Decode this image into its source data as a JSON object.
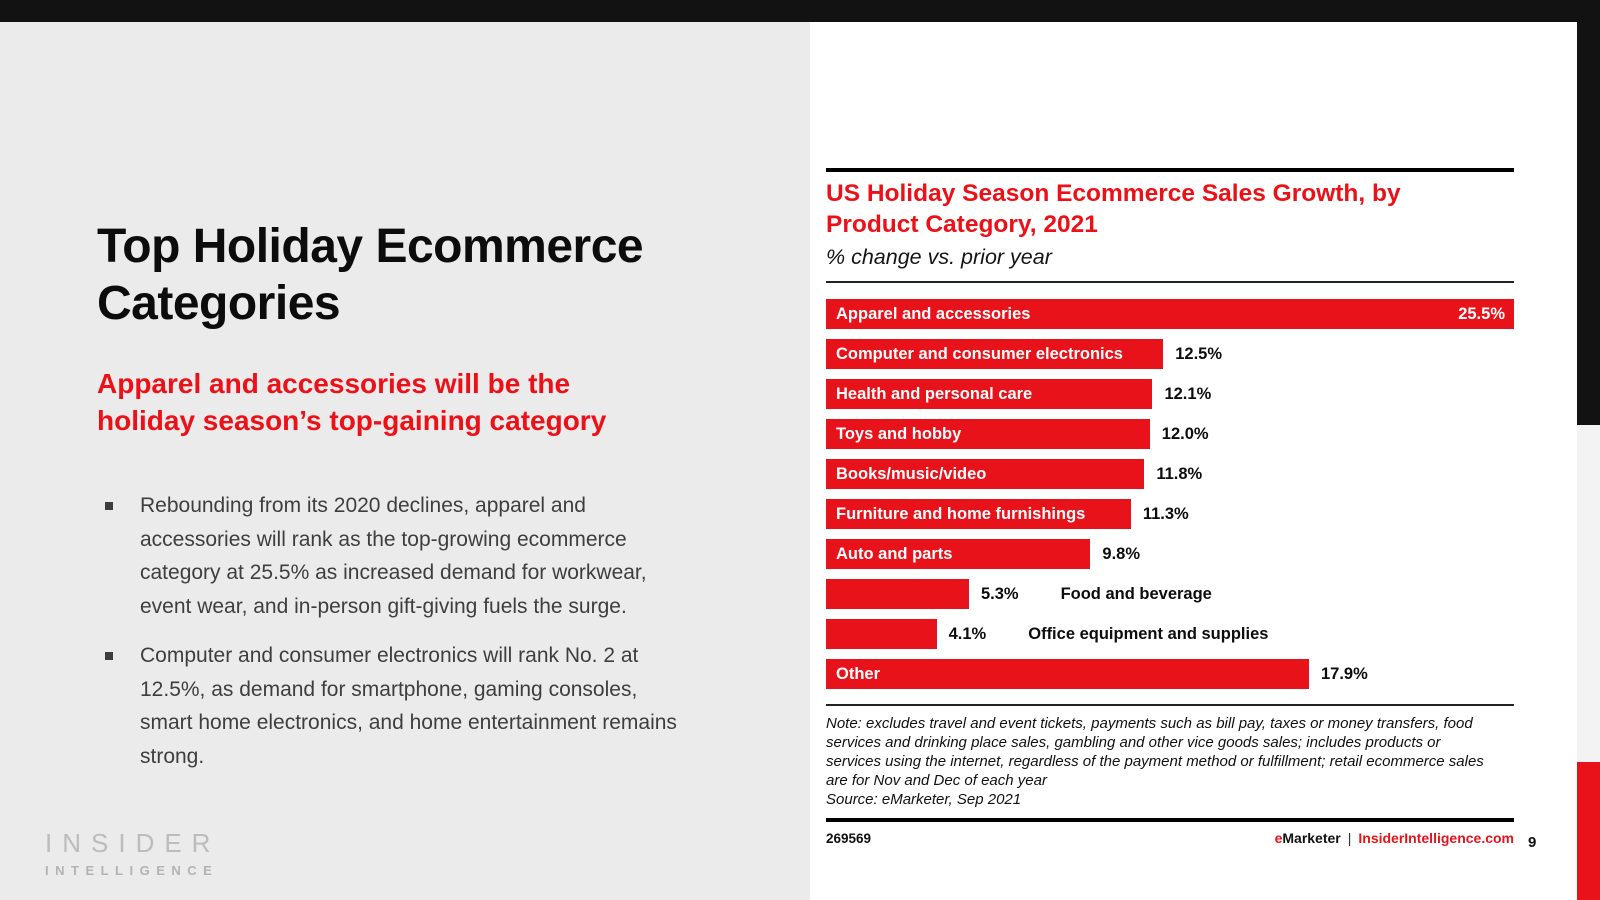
{
  "page": {
    "number": "9"
  },
  "colors": {
    "accent_red": "#E8121A",
    "top_bar_black": "#121212",
    "left_panel_gray": "#EBEBEB",
    "right_strip_gray": "#F3F3F3",
    "bullet_text_gray": "#3E3E3E"
  },
  "left": {
    "title_lines": [
      "Top Holiday Ecommerce",
      "Categories"
    ],
    "subtitle_lines": [
      "Apparel and accessories will be the",
      "holiday season’s top-gaining category"
    ],
    "bullets": [
      "Rebounding from its 2020 declines, apparel and accessories will rank as the top-growing ecommerce category at 25.5% as increased demand for workwear, event wear, and in-person gift-giving fuels the surge.",
      "Computer and consumer electronics will rank No. 2 at 12.5%, as demand for smartphone, gaming consoles, smart home electronics, and home entertainment remains strong."
    ],
    "logo": {
      "line1": "INSIDER",
      "line2": "INTELLIGENCE"
    }
  },
  "chart": {
    "note": "Note: excludes travel and event tickets, payments such as bill pay, taxes or money transfers, food services and drinking place sales, gambling and other vice goods sales; includes products or services using the internet, regardless of the payment method or fulfillment; retail ecommerce sales are for Nov and Dec of each year",
    "source": "Source: eMarketer, Sep 2021",
    "chart_id": "269569",
    "brand": {
      "e": "e",
      "marketer": "Marketer",
      "separator": "|",
      "site": "InsiderIntelligence.com"
    }
  },
  "chart_data": {
    "type": "bar",
    "orientation": "horizontal",
    "title": "US Holiday Season Ecommerce Sales Growth, by Product Category, 2021",
    "title_lines": [
      "US Holiday Season Ecommerce Sales Growth, by",
      "Product Category, 2021"
    ],
    "subtitle": "% change vs. prior year",
    "unit": "%",
    "categories": [
      "Apparel and accessories",
      "Computer and consumer electronics",
      "Health and personal care",
      "Toys and hobby",
      "Books/music/video",
      "Furniture and home furnishings",
      "Auto and parts",
      "Food and beverage",
      "Office equipment and supplies",
      "Other"
    ],
    "values": [
      25.5,
      12.5,
      12.1,
      12.0,
      11.8,
      11.3,
      9.8,
      5.3,
      4.1,
      17.9
    ],
    "value_labels": [
      "25.5%",
      "12.5%",
      "12.1%",
      "12.0%",
      "11.8%",
      "11.3%",
      "9.8%",
      "5.3%",
      "4.1%",
      "17.9%"
    ],
    "bar_color": "#E8121A",
    "value_label_placement": [
      "inside",
      "outside",
      "outside",
      "outside",
      "outside",
      "outside",
      "outside",
      "outside",
      "outside",
      "outside"
    ],
    "category_label_placement": [
      "inside",
      "inside",
      "inside",
      "inside",
      "inside",
      "inside",
      "inside",
      "outside_right",
      "outside_right",
      "inside"
    ],
    "xlim": [
      0,
      25.5
    ],
    "grid": false,
    "legend": false
  }
}
